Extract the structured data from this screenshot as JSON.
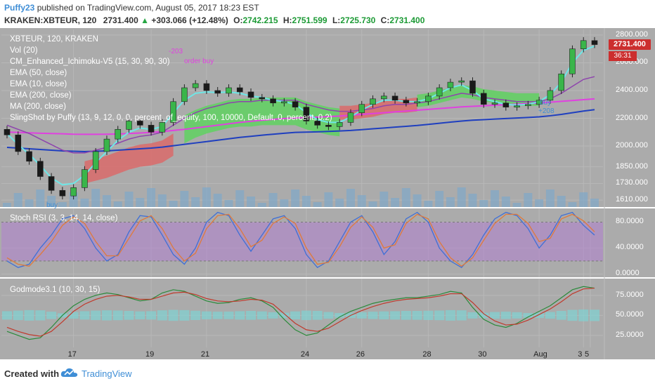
{
  "header": {
    "author": "Puffy23",
    "published": " published on TradingView.com, August 05, 2017 18:23 EST",
    "symbol": "KRAKEN:XBTEUR, 120",
    "last": "2731.400",
    "change": "+303.066 (+12.48%)",
    "o_label": "O:",
    "o": "2742.215",
    "h_label": "H:",
    "h": "2751.599",
    "l_label": "L:",
    "l": "2725.730",
    "c_label": "C:",
    "c": "2731.400"
  },
  "legend": [
    "XBTEUR, 120, KRAKEN",
    "Vol (20)",
    "CM_Enhanced_Ichimoku-V5 (15, 30, 90, 30)",
    "EMA (50, close)",
    "EMA (10, close)",
    "EMA (200, close)",
    "MA (200, close)",
    "SlingShot by Puffy (13, 9, 12, 0, 0, percent_of_equity, 100, 10000, Default, 0, percent, 0.2)"
  ],
  "stoch_title": "Stoch RSI (3, 3, 14, 14, close)",
  "god_title": "Godmode3.1 (10, 30, 15)",
  "price_tag": "2731.400",
  "timer_tag": "36:31",
  "annotations": {
    "short": "-203",
    "order_buy": "order buy",
    "buy_left": "buy",
    "buy_right": "buy",
    "plus": "+208"
  },
  "footer": {
    "created": "Created with",
    "brand": "TradingView"
  },
  "colors": {
    "background": "#ababab",
    "up_candle": "#3ab54a",
    "down_candle": "#1a1a1a",
    "cloud_green": "#5fd160",
    "cloud_red": "#d96a6a",
    "ema10": "#6ee7e7",
    "ema50": "#8e44ad",
    "ema200": "#1f3fbf",
    "ma200": "#e040e0"
  },
  "chart_data": [
    {
      "type": "line",
      "title": "XBTEUR, 120, KRAKEN",
      "panel": "price",
      "y_ticks": [
        2800,
        2600,
        2400,
        2200,
        2000,
        1850,
        1730,
        1610
      ],
      "x_ticks": [
        "17",
        "19",
        "21",
        "24",
        "26",
        "28",
        "30",
        "Aug",
        "3",
        "5"
      ],
      "ylim": [
        1560,
        2840
      ],
      "series": [
        {
          "name": "XBTEUR close",
          "values": [
            2080,
            1960,
            1890,
            1780,
            1680,
            1640,
            1700,
            1830,
            1960,
            2050,
            2120,
            2180,
            2150,
            2100,
            2170,
            2320,
            2420,
            2450,
            2400,
            2380,
            2420,
            2390,
            2350,
            2340,
            2310,
            2320,
            2280,
            2180,
            2150,
            2140,
            2170,
            2240,
            2300,
            2340,
            2360,
            2330,
            2310,
            2320,
            2360,
            2420,
            2460,
            2470,
            2380,
            2300,
            2310,
            2280,
            2290,
            2300,
            2330,
            2400,
            2520,
            2700,
            2760,
            2731
          ]
        },
        {
          "name": "EMA (10, close)",
          "values": [
            2090,
            2010,
            1940,
            1860,
            1770,
            1720,
            1730,
            1790,
            1880,
            1960,
            2040,
            2100,
            2130,
            2120,
            2140,
            2240,
            2330,
            2380,
            2390,
            2385,
            2390,
            2380,
            2360,
            2350,
            2330,
            2320,
            2300,
            2240,
            2190,
            2170,
            2170,
            2210,
            2260,
            2300,
            2330,
            2330,
            2320,
            2320,
            2340,
            2380,
            2420,
            2440,
            2400,
            2340,
            2320,
            2300,
            2295,
            2300,
            2320,
            2370,
            2460,
            2600,
            2690,
            2720
          ]
        },
        {
          "name": "EMA (50, close)",
          "values": [
            2150,
            2120,
            2090,
            2050,
            2010,
            1970,
            1950,
            1950,
            1970,
            1990,
            2020,
            2050,
            2070,
            2080,
            2100,
            2150,
            2200,
            2240,
            2270,
            2290,
            2310,
            2320,
            2320,
            2330,
            2330,
            2330,
            2330,
            2300,
            2280,
            2260,
            2250,
            2250,
            2260,
            2270,
            2290,
            2300,
            2300,
            2310,
            2320,
            2340,
            2360,
            2380,
            2370,
            2350,
            2340,
            2330,
            2320,
            2320,
            2320,
            2340,
            2380,
            2430,
            2480,
            2500
          ]
        },
        {
          "name": "EMA (200, close)",
          "values": [
            1990,
            1985,
            1980,
            1975,
            1970,
            1965,
            1962,
            1960,
            1962,
            1965,
            1970,
            1975,
            1980,
            1985,
            1992,
            2002,
            2012,
            2022,
            2032,
            2042,
            2052,
            2062,
            2070,
            2078,
            2085,
            2092,
            2098,
            2100,
            2102,
            2105,
            2108,
            2112,
            2118,
            2124,
            2130,
            2136,
            2142,
            2148,
            2156,
            2164,
            2172,
            2180,
            2186,
            2190,
            2194,
            2198,
            2202,
            2206,
            2210,
            2218,
            2228,
            2240,
            2252,
            2262
          ]
        },
        {
          "name": "MA (200, close)",
          "values": [
            2100,
            2098,
            2095,
            2092,
            2090,
            2088,
            2085,
            2084,
            2084,
            2085,
            2087,
            2090,
            2094,
            2098,
            2104,
            2112,
            2120,
            2130,
            2140,
            2150,
            2160,
            2170,
            2178,
            2186,
            2192,
            2198,
            2202,
            2205,
            2208,
            2212,
            2216,
            2222,
            2228,
            2234,
            2240,
            2246,
            2252,
            2258,
            2264,
            2270,
            2276,
            2282,
            2286,
            2290,
            2294,
            2298,
            2302,
            2306,
            2310,
            2316,
            2322,
            2328,
            2334,
            2340
          ]
        }
      ]
    },
    {
      "type": "line",
      "title": "Stoch RSI (3, 3, 14, 14, close)",
      "panel": "stoch",
      "y_ticks": [
        80,
        40,
        0
      ],
      "ylim": [
        -5,
        100
      ],
      "series": [
        {
          "name": "K",
          "values": [
            20,
            10,
            15,
            40,
            60,
            85,
            90,
            70,
            40,
            20,
            30,
            65,
            90,
            88,
            60,
            30,
            15,
            40,
            80,
            95,
            90,
            60,
            35,
            60,
            85,
            90,
            70,
            30,
            10,
            20,
            50,
            80,
            90,
            65,
            30,
            50,
            85,
            95,
            80,
            40,
            20,
            10,
            30,
            60,
            85,
            95,
            90,
            70,
            40,
            60,
            90,
            95,
            75,
            60
          ]
        },
        {
          "name": "D",
          "values": [
            25,
            15,
            12,
            30,
            50,
            75,
            88,
            78,
            50,
            28,
            28,
            55,
            82,
            90,
            70,
            40,
            20,
            32,
            70,
            90,
            92,
            70,
            42,
            52,
            78,
            88,
            78,
            40,
            15,
            18,
            42,
            72,
            88,
            72,
            40,
            45,
            78,
            92,
            85,
            50,
            25,
            12,
            25,
            52,
            78,
            92,
            92,
            78,
            50,
            55,
            85,
            92,
            82,
            65
          ]
        }
      ]
    },
    {
      "type": "line",
      "title": "Godmode3.1 (10, 30, 15)",
      "panel": "godmode",
      "y_ticks": [
        75,
        50,
        25
      ],
      "ylim": [
        10,
        95
      ],
      "series": [
        {
          "name": "line 1",
          "values": [
            30,
            25,
            20,
            22,
            35,
            50,
            62,
            70,
            75,
            78,
            76,
            72,
            68,
            70,
            78,
            82,
            80,
            74,
            68,
            65,
            66,
            70,
            72,
            68,
            60,
            45,
            32,
            25,
            28,
            38,
            48,
            55,
            60,
            65,
            68,
            70,
            72,
            72,
            74,
            76,
            80,
            78,
            60,
            45,
            38,
            35,
            40,
            48,
            55,
            62,
            72,
            82,
            86,
            84
          ]
        },
        {
          "name": "line 2",
          "values": [
            35,
            30,
            26,
            24,
            30,
            42,
            55,
            64,
            70,
            74,
            75,
            73,
            70,
            70,
            74,
            78,
            79,
            76,
            71,
            68,
            67,
            68,
            70,
            69,
            64,
            52,
            40,
            32,
            30,
            34,
            42,
            50,
            56,
            61,
            65,
            68,
            70,
            71,
            72,
            74,
            77,
            77,
            66,
            52,
            43,
            38,
            39,
            44,
            51,
            58,
            67,
            77,
            83,
            84
          ]
        }
      ]
    }
  ]
}
